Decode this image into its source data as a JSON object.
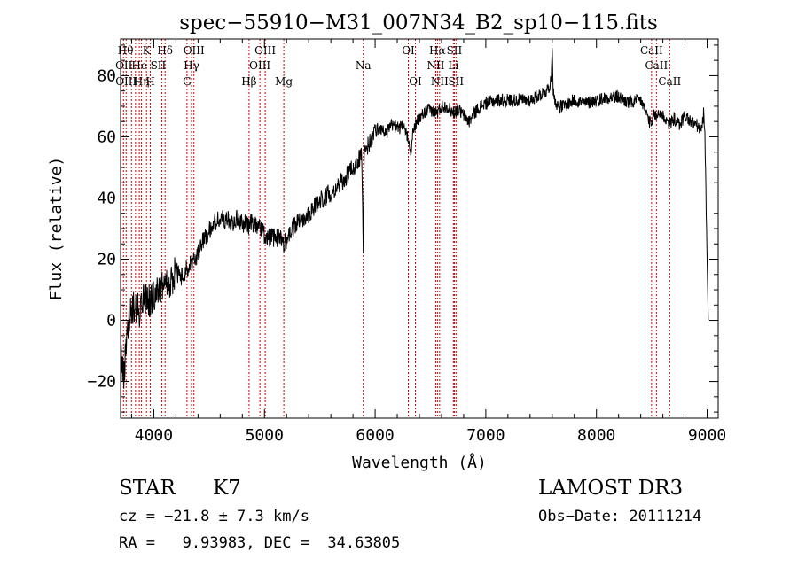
{
  "chart_data": {
    "type": "line",
    "title": "spec−55910−M31_007N34_B2_sp10−115.fits",
    "xlabel": "Wavelength (Å)",
    "ylabel": "Flux (relative)",
    "xlim": [
      3700,
      9100
    ],
    "ylim": [
      -32,
      92
    ],
    "xticks": [
      4000,
      5000,
      6000,
      7000,
      8000,
      9000
    ],
    "xtick_labels": [
      "4000",
      "5000",
      "6000",
      "7000",
      "8000",
      "9000"
    ],
    "yticks": [
      -20,
      0,
      20,
      40,
      60,
      80
    ],
    "ytick_labels": [
      "−20",
      "0",
      "20",
      "40",
      "60",
      "80"
    ],
    "line_color": "#000000",
    "marker_color": "#cc0000",
    "series": [
      {
        "name": "flux",
        "anchors_x": [
          3700,
          3730,
          3760,
          3790,
          3830,
          3870,
          3900,
          3950,
          4000,
          4050,
          4100,
          4150,
          4200,
          4250,
          4300,
          4350,
          4400,
          4450,
          4500,
          4550,
          4600,
          4650,
          4700,
          4750,
          4800,
          4850,
          4900,
          4950,
          5000,
          5050,
          5100,
          5150,
          5180,
          5220,
          5300,
          5400,
          5500,
          5600,
          5700,
          5800,
          5850,
          5880,
          5893,
          5900,
          5910,
          5950,
          6000,
          6050,
          6100,
          6150,
          6200,
          6250,
          6300,
          6320,
          6350,
          6400,
          6450,
          6500,
          6540,
          6563,
          6600,
          6650,
          6700,
          6750,
          6800,
          6850,
          6900,
          6950,
          7000,
          7100,
          7200,
          7300,
          7400,
          7500,
          7550,
          7590,
          7600,
          7610,
          7650,
          7700,
          7800,
          7900,
          8000,
          8100,
          8200,
          8300,
          8400,
          8450,
          8498,
          8520,
          8542,
          8560,
          8600,
          8620,
          8662,
          8700,
          8750,
          8800,
          8850,
          8900,
          8950,
          8970,
          8980,
          8990,
          9000,
          9010
        ],
        "anchors_y": [
          -10,
          -18,
          -5,
          2,
          5,
          3,
          7,
          6,
          8,
          10,
          14,
          12,
          16,
          14,
          17,
          19,
          22,
          26,
          29,
          32,
          33,
          33,
          32,
          33,
          32,
          31,
          32,
          31,
          28,
          27,
          27,
          27,
          25,
          28,
          32,
          35,
          39,
          42,
          45,
          50,
          52,
          55,
          22,
          53,
          56,
          58,
          62,
          63,
          61,
          64,
          63,
          63,
          60,
          55,
          63,
          66,
          68,
          69,
          68,
          68,
          70,
          70,
          68,
          69,
          67,
          65,
          68,
          70,
          71,
          72,
          72,
          72,
          72,
          74,
          75,
          78,
          89,
          74,
          70,
          70,
          72,
          71,
          72,
          73,
          73,
          71,
          72,
          68,
          63,
          68,
          66,
          68,
          67,
          66,
          64,
          66,
          64,
          67,
          65,
          64,
          62,
          68,
          60,
          40,
          20,
          0
        ]
      }
    ],
    "lines": [
      {
        "wave": 3726,
        "top": "Hθ",
        "bot": "OII"
      },
      {
        "wave": 3750,
        "top": "",
        "bot": ""
      },
      {
        "wave": 3798,
        "top": "OII",
        "bot": ""
      },
      {
        "wave": 3835,
        "top": "",
        "bot": ""
      },
      {
        "wave": 3869,
        "top": "",
        "bot": "OIII"
      },
      {
        "wave": 3889,
        "top": "He",
        "bot": "Hη"
      },
      {
        "wave": 3934,
        "top": "K",
        "bot": ""
      },
      {
        "wave": 3969,
        "top": "H",
        "bot": ""
      },
      {
        "wave": 4072,
        "top": "SII",
        "bot": ""
      },
      {
        "wave": 4102,
        "top": "Hδ",
        "bot": ""
      },
      {
        "wave": 4300,
        "top": "G",
        "bot": ""
      },
      {
        "wave": 4341,
        "top": "Hγ",
        "bot": ""
      },
      {
        "wave": 4363,
        "top": "OIII",
        "bot": ""
      },
      {
        "wave": 4861,
        "top": "Hβ",
        "bot": ""
      },
      {
        "wave": 4959,
        "top": "OIII",
        "bot": ""
      },
      {
        "wave": 5007,
        "top": "OIII",
        "bot": ""
      },
      {
        "wave": 5175,
        "top": "Mg",
        "bot": ""
      },
      {
        "wave": 5893,
        "top": "Na",
        "bot": ""
      },
      {
        "wave": 6300,
        "top": "OI",
        "bot": ""
      },
      {
        "wave": 6364,
        "top": "OI",
        "bot": ""
      },
      {
        "wave": 6548,
        "top": "NII",
        "bot": "NII"
      },
      {
        "wave": 6563,
        "top": "Hα",
        "bot": ""
      },
      {
        "wave": 6583,
        "top": "NII",
        "bot": ""
      },
      {
        "wave": 6707,
        "top": "Li",
        "bot": ""
      },
      {
        "wave": 6716,
        "top": "SII",
        "bot": "SII"
      },
      {
        "wave": 6731,
        "top": "SII",
        "bot": ""
      },
      {
        "wave": 8498,
        "top": "CaII",
        "bot": ""
      },
      {
        "wave": 8542,
        "top": "CaII",
        "bot": ""
      },
      {
        "wave": 8662,
        "top": "CaII",
        "bot": ""
      }
    ],
    "line_labels": [
      {
        "text": "Hθ",
        "wave": 3745,
        "row": 0
      },
      {
        "text": "K",
        "wave": 3934,
        "row": 0
      },
      {
        "text": "Hδ",
        "wave": 4102,
        "row": 0
      },
      {
        "text": "OIII",
        "wave": 4363,
        "row": 0
      },
      {
        "text": "OIII",
        "wave": 5007,
        "row": 0
      },
      {
        "text": "OI",
        "wave": 6300,
        "row": 0
      },
      {
        "text": "Hα",
        "wave": 6563,
        "row": 0
      },
      {
        "text": "SII",
        "wave": 6716,
        "row": 0
      },
      {
        "text": "CaII",
        "wave": 8498,
        "row": 0
      },
      {
        "text": "OII",
        "wave": 3730,
        "row": 1
      },
      {
        "text": "He",
        "wave": 3870,
        "row": 1
      },
      {
        "text": "SII",
        "wave": 4040,
        "row": 1
      },
      {
        "text": "Hγ",
        "wave": 4341,
        "row": 1
      },
      {
        "text": "OIII",
        "wave": 4959,
        "row": 1
      },
      {
        "text": "Na",
        "wave": 5893,
        "row": 1
      },
      {
        "text": "NII",
        "wave": 6548,
        "row": 1
      },
      {
        "text": "Li",
        "wave": 6707,
        "row": 1
      },
      {
        "text": "CaII",
        "wave": 8542,
        "row": 1
      },
      {
        "text": "OIII",
        "wave": 3750,
        "row": 2
      },
      {
        "text": "Hη",
        "wave": 3889,
        "row": 2
      },
      {
        "text": "H",
        "wave": 3969,
        "row": 2
      },
      {
        "text": "G",
        "wave": 4300,
        "row": 2
      },
      {
        "text": "Hβ",
        "wave": 4861,
        "row": 2
      },
      {
        "text": "Mg",
        "wave": 5175,
        "row": 2
      },
      {
        "text": "OI",
        "wave": 6364,
        "row": 2
      },
      {
        "text": "NII",
        "wave": 6583,
        "row": 2
      },
      {
        "text": "SII",
        "wave": 6731,
        "row": 2
      },
      {
        "text": "CaII",
        "wave": 8662,
        "row": 2
      }
    ]
  },
  "footer": {
    "class": "STAR",
    "subclass": "K7",
    "survey": "LAMOST DR3",
    "cz": "cz = −21.8 ± 7.3 km/s",
    "obs_date": "Obs−Date: 20111214",
    "coords": "RA =   9.93983, DEC =  34.63805"
  }
}
